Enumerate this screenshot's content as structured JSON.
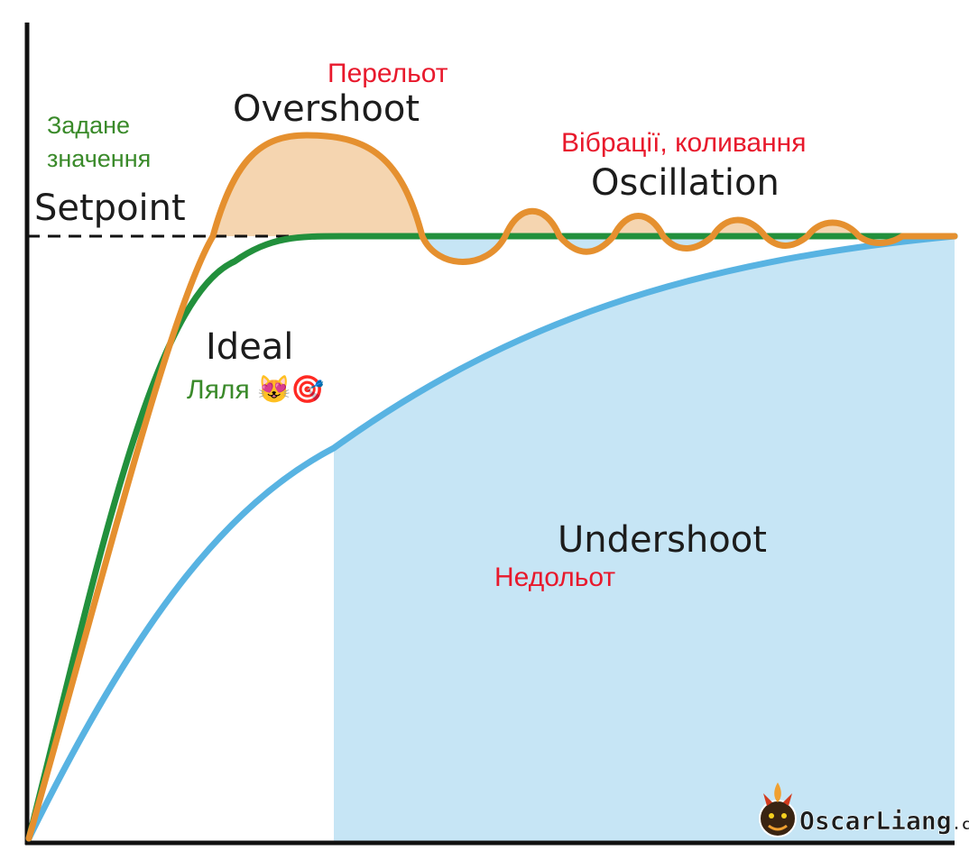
{
  "labels": {
    "setpoint_en": "Setpoint",
    "setpoint_ua_line1": "Задане",
    "setpoint_ua_line2": "значення",
    "overshoot_en": "Overshoot",
    "overshoot_ua": "Перельот",
    "oscillation_en": "Oscillation",
    "oscillation_ua": "Вібрації, коливання",
    "ideal_en": "Ideal",
    "ideal_ua": "Ляля 😻🎯",
    "undershoot_en": "Undershoot",
    "undershoot_ua": "Недольот"
  },
  "logo": {
    "text_main": "OscarLiang",
    "text_suffix": ".com",
    "icon": "dragon-head-icon"
  },
  "colors": {
    "ideal_curve": "#22903c",
    "overshoot_curve": "#e5902f",
    "undershoot_curve": "#58b3e2",
    "overshoot_fill": "#f5d5b0",
    "undershoot_fill": "#c6e5f5",
    "setpoint_line": "#111111",
    "label_green": "#3a8a2a",
    "label_red": "#e8192c"
  }
}
